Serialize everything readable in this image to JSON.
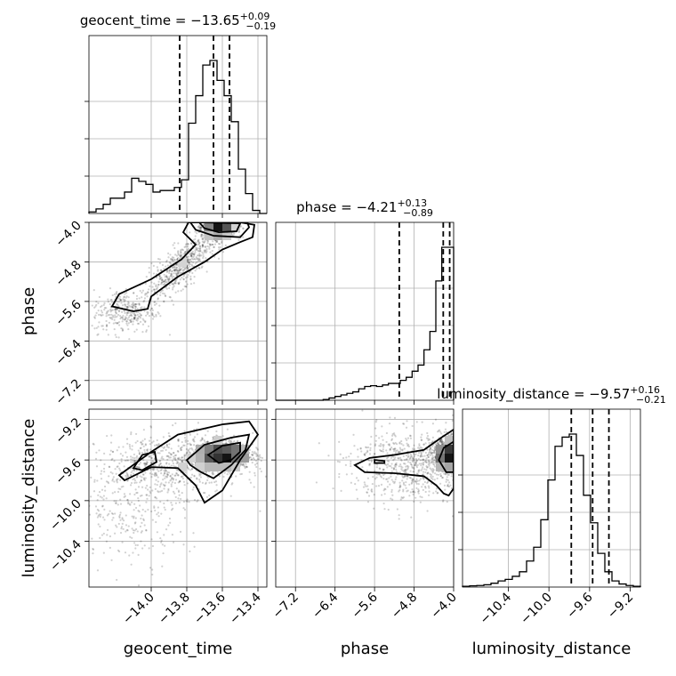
{
  "chart_data": {
    "type": "corner",
    "parameters": [
      {
        "name": "geocent_time",
        "axis_label": "geocent_time",
        "title": {
          "prefix": "geocent_time = ",
          "median": "−13.65",
          "plus": "+0.09",
          "minus": "−0.19"
        },
        "range": [
          -14.35,
          -13.35
        ],
        "ticks": [
          -14.0,
          -13.8,
          -13.6,
          -13.4
        ],
        "tick_labels": [
          "−14.0",
          "−13.8",
          "−13.6",
          "−13.4"
        ],
        "quantiles": [
          -13.84,
          -13.65,
          -13.56
        ],
        "hist": [
          0.01,
          0.03,
          0.06,
          0.1,
          0.1,
          0.14,
          0.23,
          0.21,
          0.19,
          0.14,
          0.15,
          0.15,
          0.17,
          0.22,
          0.59,
          0.77,
          0.97,
          1.0,
          0.87,
          0.77,
          0.6,
          0.29,
          0.13,
          0.02,
          0.0
        ]
      },
      {
        "name": "phase",
        "axis_label": "phase",
        "title": {
          "prefix": "phase = ",
          "median": "−4.21",
          "plus": "+0.13",
          "minus": "−0.89"
        },
        "range": [
          -7.6,
          -4.0
        ],
        "ticks": [
          -7.2,
          -6.4,
          -5.6,
          -4.8,
          -4.0
        ],
        "tick_labels": [
          "−7.2",
          "−6.4",
          "−5.6",
          "−4.8",
          "−4.0"
        ],
        "quantiles": [
          -5.1,
          -4.21,
          -4.08
        ],
        "hist": [
          0,
          0,
          0,
          0,
          0,
          0,
          0,
          0,
          0.005,
          0.015,
          0.025,
          0.035,
          0.045,
          0.055,
          0.075,
          0.09,
          0.095,
          0.09,
          0.1,
          0.11,
          0.11,
          0.13,
          0.15,
          0.19,
          0.23,
          0.33,
          0.45,
          0.78,
          1.0,
          1.0
        ]
      },
      {
        "name": "luminosity_distance",
        "axis_label": "luminosity_distance",
        "title": {
          "prefix": "luminosity_distance = ",
          "median": "−9.57",
          "plus": "+0.16",
          "minus": "−0.21"
        },
        "range": [
          -10.85,
          -9.1
        ],
        "ticks": [
          -10.4,
          -10.0,
          -9.6,
          -9.2
        ],
        "tick_labels": [
          "−10.4",
          "−10.0",
          "−9.6",
          "−9.2"
        ],
        "quantiles": [
          -9.78,
          -9.57,
          -9.41
        ],
        "hist": [
          0.005,
          0.008,
          0.01,
          0.015,
          0.025,
          0.04,
          0.05,
          0.07,
          0.1,
          0.17,
          0.26,
          0.44,
          0.7,
          0.92,
          0.98,
          1.0,
          0.86,
          0.6,
          0.42,
          0.22,
          0.1,
          0.04,
          0.02,
          0.01,
          0.005
        ]
      }
    ],
    "sample_clusters": [
      {
        "pair": [
          0,
          1
        ],
        "n": 900,
        "mean": [
          -13.62,
          -4.1
        ],
        "sd": [
          0.05,
          0.1
        ]
      },
      {
        "pair": [
          0,
          1
        ],
        "n": 650,
        "mean": [
          -13.82,
          -4.85
        ],
        "sd": [
          0.12,
          0.4
        ],
        "corr": 0.85
      },
      {
        "pair": [
          0,
          1
        ],
        "n": 300,
        "mean": [
          -14.15,
          -5.8
        ],
        "sd": [
          0.09,
          0.22
        ]
      },
      {
        "pair": [
          0,
          2
        ],
        "n": 1100,
        "mean": [
          -13.6,
          -9.55
        ],
        "sd": [
          0.08,
          0.07
        ]
      },
      {
        "pair": [
          0,
          2
        ],
        "n": 700,
        "mean": [
          -13.9,
          -9.65
        ],
        "sd": [
          0.2,
          0.15
        ]
      },
      {
        "pair": [
          0,
          2
        ],
        "n": 260,
        "mean": [
          -14.1,
          -10.1
        ],
        "sd": [
          0.15,
          0.25
        ]
      },
      {
        "pair": [
          1,
          2
        ],
        "n": 1200,
        "mean": [
          -4.1,
          -9.55
        ],
        "sd": [
          0.15,
          0.08
        ]
      },
      {
        "pair": [
          1,
          2
        ],
        "n": 700,
        "mean": [
          -4.9,
          -9.65
        ],
        "sd": [
          0.6,
          0.18
        ]
      }
    ],
    "contours": [
      {
        "pair": [
          0,
          1
        ],
        "points": [
          [
            -13.78,
            -4.0
          ],
          [
            -13.75,
            -4.15
          ],
          [
            -13.65,
            -4.27
          ],
          [
            -13.5,
            -4.3
          ],
          [
            -13.45,
            -4.1
          ],
          [
            -13.46,
            -4.0
          ]
        ]
      },
      {
        "pair": [
          0,
          1
        ],
        "points": [
          [
            -13.73,
            -4.0
          ],
          [
            -13.7,
            -4.12
          ],
          [
            -13.62,
            -4.2
          ],
          [
            -13.52,
            -4.18
          ],
          [
            -13.5,
            -4.02
          ]
        ]
      },
      {
        "pair": [
          0,
          1
        ],
        "points": [
          [
            -14.02,
            -5.75
          ],
          [
            -14.0,
            -5.5
          ],
          [
            -13.85,
            -5.1
          ],
          [
            -13.7,
            -4.8
          ],
          [
            -13.6,
            -4.55
          ],
          [
            -13.5,
            -4.4
          ],
          [
            -13.43,
            -4.3
          ],
          [
            -13.42,
            -4.05
          ],
          [
            -13.5,
            -4.0
          ],
          [
            -13.79,
            -4.0
          ],
          [
            -13.82,
            -4.2
          ],
          [
            -13.75,
            -4.45
          ],
          [
            -13.83,
            -4.75
          ],
          [
            -14.0,
            -5.15
          ],
          [
            -14.18,
            -5.45
          ],
          [
            -14.22,
            -5.7
          ],
          [
            -14.1,
            -5.8
          ]
        ]
      },
      {
        "pair": [
          0,
          2
        ],
        "points": [
          [
            -14.18,
            -9.75
          ],
          [
            -14.0,
            -9.52
          ],
          [
            -13.85,
            -9.35
          ],
          [
            -13.6,
            -9.25
          ],
          [
            -13.45,
            -9.22
          ],
          [
            -13.4,
            -9.35
          ],
          [
            -13.5,
            -9.6
          ],
          [
            -13.6,
            -9.9
          ],
          [
            -13.7,
            -10.02
          ],
          [
            -13.75,
            -9.85
          ],
          [
            -13.85,
            -9.68
          ],
          [
            -14.0,
            -9.67
          ],
          [
            -14.15,
            -9.8
          ]
        ]
      },
      {
        "pair": [
          0,
          2
        ],
        "points": [
          [
            -13.8,
            -9.6
          ],
          [
            -13.7,
            -9.45
          ],
          [
            -13.55,
            -9.38
          ],
          [
            -13.45,
            -9.35
          ],
          [
            -13.47,
            -9.5
          ],
          [
            -13.55,
            -9.65
          ],
          [
            -13.65,
            -9.78
          ],
          [
            -13.72,
            -9.72
          ],
          [
            -13.78,
            -9.65
          ]
        ]
      },
      {
        "pair": [
          0,
          2
        ],
        "points": [
          [
            -13.68,
            -9.55
          ],
          [
            -13.6,
            -9.46
          ],
          [
            -13.5,
            -9.43
          ],
          [
            -13.5,
            -9.52
          ],
          [
            -13.55,
            -9.6
          ],
          [
            -13.62,
            -9.63
          ]
        ]
      },
      {
        "pair": [
          0,
          2
        ],
        "points": [
          [
            -14.1,
            -9.68
          ],
          [
            -14.05,
            -9.55
          ],
          [
            -13.98,
            -9.52
          ],
          [
            -13.97,
            -9.62
          ],
          [
            -14.05,
            -9.7
          ]
        ]
      },
      {
        "pair": [
          1,
          2
        ],
        "points": [
          [
            -4.0,
            -9.3
          ],
          [
            -4.25,
            -9.38
          ],
          [
            -4.6,
            -9.5
          ],
          [
            -5.2,
            -9.55
          ],
          [
            -5.7,
            -9.58
          ],
          [
            -6.0,
            -9.65
          ],
          [
            -5.8,
            -9.72
          ],
          [
            -5.2,
            -9.73
          ],
          [
            -4.6,
            -9.76
          ],
          [
            -4.35,
            -9.85
          ],
          [
            -4.2,
            -9.93
          ],
          [
            -4.1,
            -9.95
          ],
          [
            -4.0,
            -9.88
          ]
        ]
      },
      {
        "pair": [
          1,
          2
        ],
        "points": [
          [
            -4.0,
            -9.42
          ],
          [
            -4.2,
            -9.48
          ],
          [
            -4.3,
            -9.6
          ],
          [
            -4.15,
            -9.72
          ],
          [
            -4.0,
            -9.72
          ]
        ]
      },
      {
        "pair": [
          1,
          2
        ],
        "points": [
          [
            -5.4,
            -9.61
          ],
          [
            -5.6,
            -9.6
          ],
          [
            -5.6,
            -9.63
          ],
          [
            -5.4,
            -9.63
          ]
        ]
      }
    ],
    "grid": true
  }
}
